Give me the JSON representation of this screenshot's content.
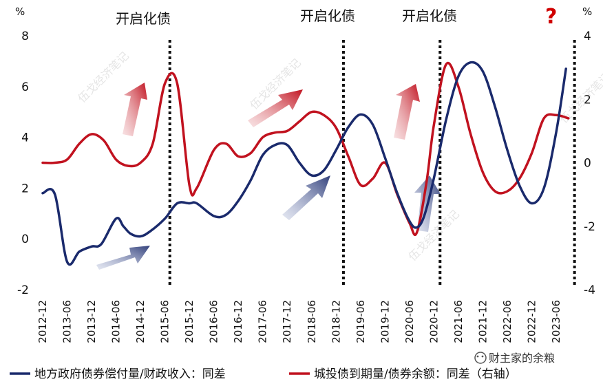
{
  "chart_data": {
    "type": "line",
    "x": [
      "2012-12",
      "2013-06",
      "2013-12",
      "2014-06",
      "2014-12",
      "2015-06",
      "2015-12",
      "2016-06",
      "2016-12",
      "2017-06",
      "2017-12",
      "2018-06",
      "2018-12",
      "2019-06",
      "2019-12",
      "2020-06",
      "2020-12",
      "2021-06",
      "2021-12",
      "2022-06",
      "2022-12",
      "2023-06"
    ],
    "y_left_unit": "%",
    "y_right_unit": "%",
    "ylim_left": [
      -2,
      8
    ],
    "yticks_left": [
      -2,
      0,
      2,
      4,
      6,
      8
    ],
    "ylim_right": [
      -4,
      4
    ],
    "yticks_right": [
      -4,
      -2,
      0,
      2,
      4
    ],
    "series": [
      {
        "name": "地方政府债券偿付量/财政收入：同差",
        "axis": "left",
        "color": "#1a2a6c",
        "points": [
          [
            0,
            1.8
          ],
          [
            0.5,
            1.75
          ],
          [
            1,
            -0.9
          ],
          [
            1.5,
            -0.5
          ],
          [
            2,
            -0.3
          ],
          [
            2.4,
            -0.2
          ],
          [
            3,
            0.8
          ],
          [
            3.3,
            0.5
          ],
          [
            3.6,
            0.2
          ],
          [
            4,
            0.1
          ],
          [
            4.4,
            0.3
          ],
          [
            5,
            0.8
          ],
          [
            5.5,
            1.4
          ],
          [
            6,
            1.4
          ],
          [
            6.3,
            1.4
          ],
          [
            7,
            0.9
          ],
          [
            7.5,
            0.95
          ],
          [
            8,
            1.5
          ],
          [
            8.5,
            2.3
          ],
          [
            9,
            3.3
          ],
          [
            9.5,
            3.7
          ],
          [
            10,
            3.7
          ],
          [
            10.5,
            3.0
          ],
          [
            11,
            2.5
          ],
          [
            11.5,
            2.7
          ],
          [
            12,
            3.5
          ],
          [
            12.5,
            4.4
          ],
          [
            13,
            4.9
          ],
          [
            13.5,
            4.5
          ],
          [
            14,
            3.2
          ],
          [
            14.5,
            1.8
          ],
          [
            15,
            0.7
          ],
          [
            15.3,
            0.45
          ],
          [
            15.6,
            0.9
          ],
          [
            16,
            2.4
          ],
          [
            16.5,
            4.7
          ],
          [
            17,
            6.4
          ],
          [
            17.5,
            6.95
          ],
          [
            18,
            6.6
          ],
          [
            18.5,
            5.2
          ],
          [
            19,
            3.5
          ],
          [
            19.5,
            2.1
          ],
          [
            20,
            1.4
          ],
          [
            20.5,
            2.0
          ],
          [
            21,
            4.2
          ],
          [
            21.4,
            6.7
          ]
        ]
      },
      {
        "name": "城投债到期量/债券余额：同差（右轴）",
        "axis": "right",
        "color": "#c1121f",
        "points": [
          [
            0,
            0
          ],
          [
            0.5,
            0
          ],
          [
            1,
            0.1
          ],
          [
            1.5,
            0.6
          ],
          [
            2,
            0.9
          ],
          [
            2.5,
            0.7
          ],
          [
            3,
            0.1
          ],
          [
            3.5,
            -0.1
          ],
          [
            4,
            0
          ],
          [
            4.5,
            0.6
          ],
          [
            5,
            2.5
          ],
          [
            5.5,
            2.5
          ],
          [
            6,
            -0.7
          ],
          [
            6.3,
            -0.8
          ],
          [
            7,
            0.4
          ],
          [
            7.5,
            0.6
          ],
          [
            8,
            0.2
          ],
          [
            8.5,
            0.3
          ],
          [
            9,
            0.8
          ],
          [
            9.5,
            0.95
          ],
          [
            10,
            1
          ],
          [
            10.5,
            1.3
          ],
          [
            11,
            1.6
          ],
          [
            11.5,
            1.5
          ],
          [
            12,
            1.1
          ],
          [
            12.5,
            0.2
          ],
          [
            13,
            -0.7
          ],
          [
            13.5,
            -0.5
          ],
          [
            14,
            0
          ],
          [
            14.5,
            -1
          ],
          [
            15,
            -1.9
          ],
          [
            15.3,
            -2.2
          ],
          [
            15.7,
            -0.6
          ],
          [
            16,
            1.2
          ],
          [
            16.5,
            3.1
          ],
          [
            17,
            2.4
          ],
          [
            17.5,
            0.9
          ],
          [
            18,
            -0.3
          ],
          [
            18.5,
            -0.9
          ],
          [
            19,
            -0.9
          ],
          [
            19.5,
            -0.5
          ],
          [
            20,
            0.3
          ],
          [
            20.5,
            1.4
          ],
          [
            21,
            1.5
          ],
          [
            21.5,
            1.4
          ]
        ]
      }
    ],
    "annotations": [
      "开启化债",
      "开启化债",
      "开启化债",
      "?"
    ],
    "vlines_at": [
      5.2,
      12.3,
      16.25,
      21.75
    ]
  },
  "annotations": {
    "a1": "开启化债",
    "a2": "开启化债",
    "a3": "开启化债",
    "q": "?"
  },
  "units": {
    "left": "%",
    "right": "%"
  },
  "legend": {
    "left": "地方政府债券偿付量/财政收入：同差",
    "right": "城投债到期量/债券余额：同差（右轴）"
  },
  "watermark": {
    "source": "财主家的余粮",
    "mark": "伍戈经济笔记"
  }
}
